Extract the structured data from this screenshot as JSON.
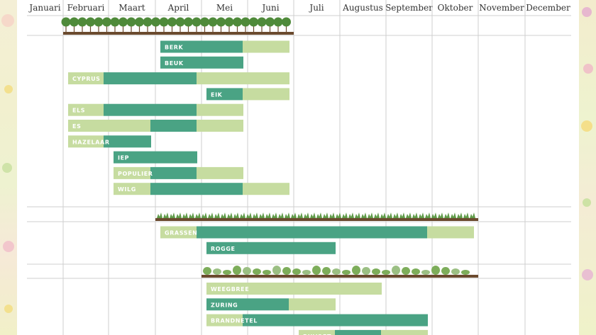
{
  "chart_data": {
    "type": "bar",
    "subtype": "gantt",
    "title": "",
    "months": [
      "Januari",
      "Februari",
      "Maart",
      "April",
      "Mei",
      "Juni",
      "Juli",
      "Augustus",
      "September",
      "Oktober",
      "November",
      "December"
    ],
    "colors": {
      "high": "#4aa384",
      "low": "#c6dca0",
      "grid": "#cfcfcf",
      "soil": "#6b4a2e",
      "foliage": "#4f8a3a"
    },
    "groups": [
      {
        "icon": "trees-icon",
        "span": [
          1,
          6
        ],
        "items": [
          {
            "name": "BERK",
            "segments": [
              {
                "from": 3,
                "to": 5,
                "level": "high"
              },
              {
                "from": 5,
                "to": 6,
                "level": "low"
              }
            ]
          },
          {
            "name": "BEUK",
            "segments": [
              {
                "from": 3,
                "to": 5,
                "level": "high"
              }
            ]
          },
          {
            "name": "CYPRUS",
            "segments": [
              {
                "from": 1,
                "to": 2,
                "level": "low"
              },
              {
                "from": 2,
                "to": 4,
                "level": "high"
              },
              {
                "from": 4,
                "to": 6,
                "level": "low"
              }
            ]
          },
          {
            "name": "EIK",
            "segments": [
              {
                "from": 4,
                "to": 5,
                "level": "high"
              },
              {
                "from": 5,
                "to": 6,
                "level": "low"
              }
            ]
          },
          {
            "name": "ELS",
            "segments": [
              {
                "from": 1,
                "to": 2,
                "level": "low"
              },
              {
                "from": 2,
                "to": 4,
                "level": "high"
              },
              {
                "from": 4,
                "to": 5,
                "level": "low"
              }
            ]
          },
          {
            "name": "ES",
            "segments": [
              {
                "from": 1,
                "to": 3,
                "level": "low"
              },
              {
                "from": 3,
                "to": 4,
                "level": "high"
              },
              {
                "from": 4,
                "to": 5,
                "level": "low"
              }
            ]
          },
          {
            "name": "HAZELAAR",
            "segments": [
              {
                "from": 1,
                "to": 2,
                "level": "low"
              },
              {
                "from": 2,
                "to": 3,
                "level": "high"
              }
            ]
          },
          {
            "name": "IEP",
            "segments": [
              {
                "from": 2,
                "to": 4,
                "level": "high"
              }
            ]
          },
          {
            "name": "POPULIER",
            "segments": [
              {
                "from": 2,
                "to": 3,
                "level": "low"
              },
              {
                "from": 3,
                "to": 4,
                "level": "high"
              },
              {
                "from": 4,
                "to": 5,
                "level": "low"
              }
            ]
          },
          {
            "name": "WILG",
            "segments": [
              {
                "from": 2,
                "to": 3,
                "level": "low"
              },
              {
                "from": 3,
                "to": 5,
                "level": "high"
              },
              {
                "from": 5,
                "to": 6,
                "level": "low"
              }
            ]
          }
        ]
      },
      {
        "icon": "grass-icon",
        "span": [
          3,
          10
        ],
        "items": [
          {
            "name": "GRASSEN",
            "segments": [
              {
                "from": 3,
                "to": 4,
                "level": "low"
              },
              {
                "from": 4,
                "to": 9,
                "level": "high"
              },
              {
                "from": 9,
                "to": 10,
                "level": "low"
              }
            ]
          },
          {
            "name": "ROGGE",
            "segments": [
              {
                "from": 4,
                "to": 7,
                "level": "high"
              }
            ]
          }
        ]
      },
      {
        "icon": "herbs-icon",
        "span": [
          4,
          10
        ],
        "items": [
          {
            "name": "WEEGBREE",
            "segments": [
              {
                "from": 4,
                "to": 8,
                "level": "low"
              }
            ]
          },
          {
            "name": "ZURING",
            "segments": [
              {
                "from": 4,
                "to": 6,
                "level": "high"
              },
              {
                "from": 6,
                "to": 7,
                "level": "low"
              }
            ]
          },
          {
            "name": "BRANDNETEL",
            "segments": [
              {
                "from": 4,
                "to": 5,
                "level": "low"
              },
              {
                "from": 5,
                "to": 9,
                "level": "high"
              }
            ]
          },
          {
            "name": "BIJVOET",
            "segments": [
              {
                "from": 6,
                "to": 7,
                "level": "low"
              },
              {
                "from": 7,
                "to": 8,
                "level": "high"
              },
              {
                "from": 8,
                "to": 9,
                "level": "low"
              }
            ]
          }
        ]
      }
    ]
  }
}
